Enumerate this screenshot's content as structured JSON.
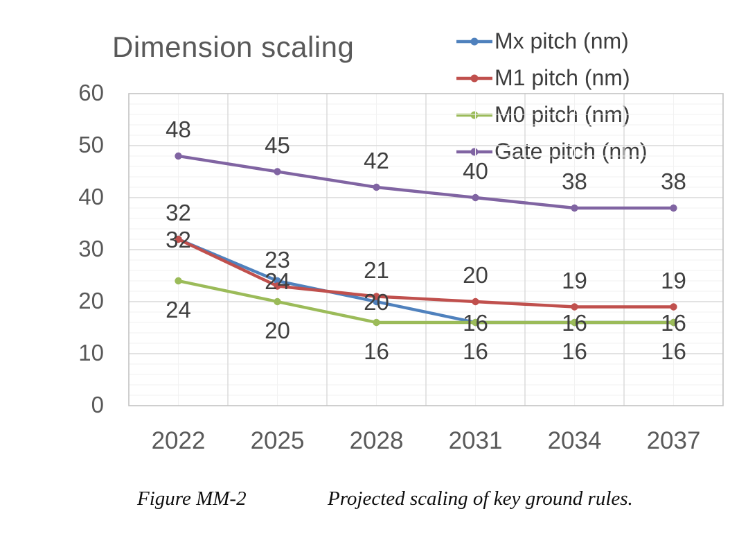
{
  "title": "Dimension scaling",
  "caption": {
    "figure_label": "Figure MM-2",
    "figure_text": "Projected scaling of key ground rules."
  },
  "chart_data": {
    "type": "line",
    "title": "Dimension scaling",
    "categories": [
      "2022",
      "2025",
      "2028",
      "2031",
      "2034",
      "2037"
    ],
    "series": [
      {
        "name": "Mx pitch (nm)",
        "color": "#4F81BD",
        "values": [
          32,
          24,
          20,
          16,
          16,
          16
        ],
        "label_position": "center"
      },
      {
        "name": "M1 pitch (nm)",
        "color": "#C0504D",
        "values": [
          32,
          23,
          21,
          20,
          19,
          19
        ],
        "label_position": "above"
      },
      {
        "name": "M0 pitch (nm)",
        "color": "#9BBB59",
        "values": [
          24,
          20,
          16,
          16,
          16,
          16
        ],
        "label_position": "below"
      },
      {
        "name": "Gate pitch (nm)",
        "color": "#8064A2",
        "values": [
          48,
          45,
          42,
          40,
          38,
          38
        ],
        "label_position": "above"
      }
    ],
    "xlabel": "",
    "ylabel": "",
    "ylim": [
      0,
      60
    ],
    "y_tick_labels": [
      "0",
      "10",
      "20",
      "30",
      "40",
      "50",
      "60"
    ],
    "y_major_unit": 10,
    "y_minor_unit": 2,
    "grid": true,
    "x_minor_gridlines_at_points": true,
    "data_labels": true,
    "legend_position": "top-right",
    "marker": "circle"
  },
  "colors": {
    "title_text": "#595959",
    "axis_text": "#595959",
    "data_label_text": "#3f3f3f",
    "grid_major": "#d9d9d9",
    "grid_minor": "#f2f2f2",
    "plot_border": "#c3c3c3",
    "background": "#ffffff"
  }
}
